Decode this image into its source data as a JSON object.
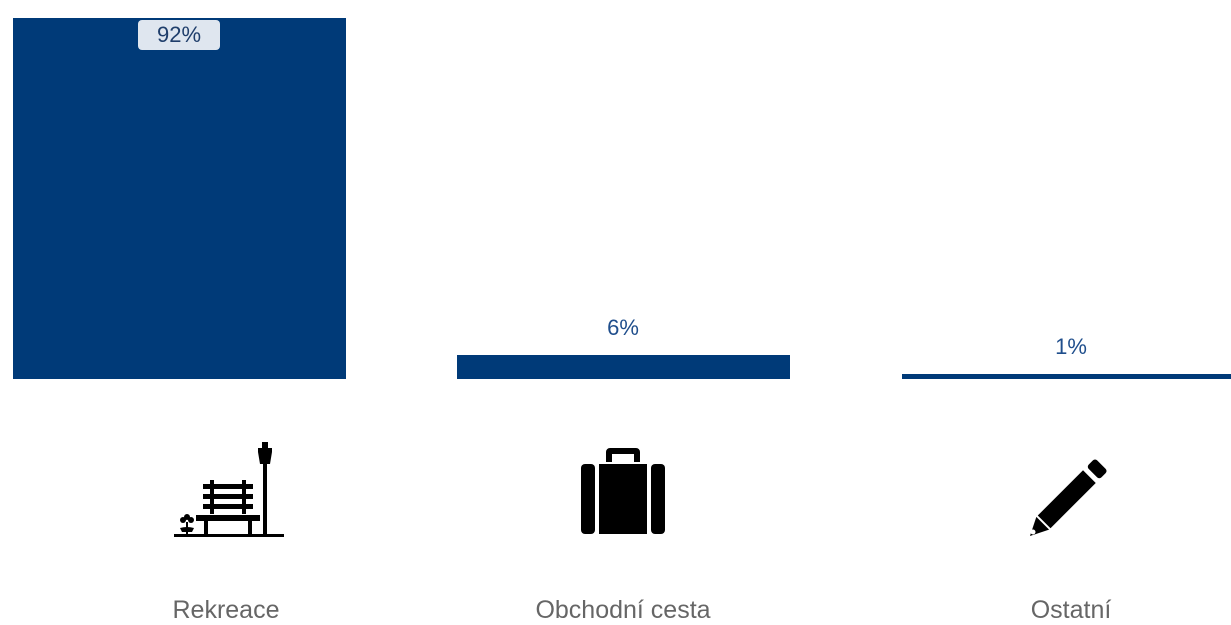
{
  "chart_data": {
    "type": "bar",
    "categories": [
      "Rekreace",
      "Obchodní cesta",
      "Ostatní"
    ],
    "values": [
      92,
      6,
      1
    ],
    "value_labels": [
      "92%",
      "6%",
      "1%"
    ],
    "icons": [
      "park-bench-icon",
      "suitcase-icon",
      "pencil-icon"
    ],
    "ylim": [
      0,
      92
    ],
    "grid": false,
    "title": "",
    "xlabel": "",
    "ylabel": ""
  },
  "colors": {
    "bar": "#003a78",
    "value_text": "#1f4e8c",
    "category_text": "#666666"
  }
}
